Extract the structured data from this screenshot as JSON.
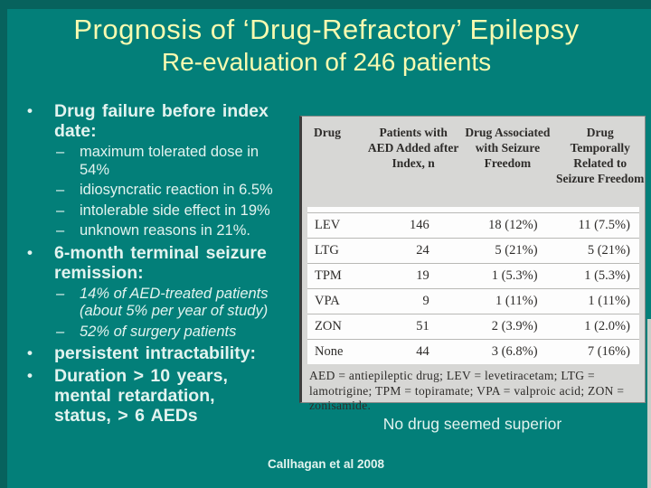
{
  "colors": {
    "background": "#037f79",
    "border": "#07625d",
    "title": "#f8fab0",
    "body_text": "#e2f3ef",
    "table_background": "#d7d7d5",
    "table_body_background": "#fdfdfd",
    "table_text": "#2e2c2a"
  },
  "title": {
    "line1": "Prognosis of ‘Drug-Refractory’ Epilepsy",
    "line2": "Re-evaluation of 246 patients"
  },
  "bullets": [
    {
      "level": 1,
      "marker": "•",
      "italic": false,
      "text": "Drug failure before index date:"
    },
    {
      "level": 2,
      "marker": "–",
      "italic": false,
      "text": "maximum tolerated dose in 54%"
    },
    {
      "level": 2,
      "marker": "–",
      "italic": false,
      "text": "idiosyncratic reaction in 6.5%"
    },
    {
      "level": 2,
      "marker": "–",
      "italic": false,
      "text": " intolerable side effect in 19%"
    },
    {
      "level": 2,
      "marker": "–",
      "italic": false,
      "text": "unknown reasons in 21%."
    },
    {
      "level": 1,
      "marker": "•",
      "italic": false,
      "text": "6-month terminal seizure remission:"
    },
    {
      "level": 2,
      "marker": "–",
      "italic": true,
      "text": "14% of AED-treated patients (about 5% per year of study)"
    },
    {
      "level": 2,
      "marker": "–",
      "italic": true,
      "text": "52% of surgery patients"
    },
    {
      "level": 1,
      "marker": "•",
      "italic": false,
      "text": "persistent intractability:"
    },
    {
      "level": 1,
      "marker": "•",
      "italic": false,
      "text": "Duration > 10 years, mental retardation, status, > 6 AEDs"
    }
  ],
  "table": {
    "headers": [
      "Drug",
      "Patients with AED Added after Index, n",
      "Drug Associated with Seizure Freedom",
      "Drug Temporally Related to Seizure Freedom"
    ],
    "rows": [
      [
        "LEV",
        "146",
        "18 (12%)",
        "11 (7.5%)"
      ],
      [
        "LTG",
        "24",
        "5 (21%)",
        "5 (21%)"
      ],
      [
        "TPM",
        "19",
        "1 (5.3%)",
        "1 (5.3%)"
      ],
      [
        "VPA",
        "9",
        "1 (11%)",
        "1 (11%)"
      ],
      [
        "ZON",
        "51",
        "2 (3.9%)",
        "1 (2.0%)"
      ],
      [
        "None",
        "44",
        "3 (6.8%)",
        "7 (16%)"
      ]
    ],
    "footnote": "AED = antiepileptic drug; LEV = levetiracetam; LTG = lamotrigine; TPM = topiramate; VPA = valproic acid; ZON = zonisamide."
  },
  "caption": "No drug seemed superior",
  "citation": "Callhagan et al 2008"
}
